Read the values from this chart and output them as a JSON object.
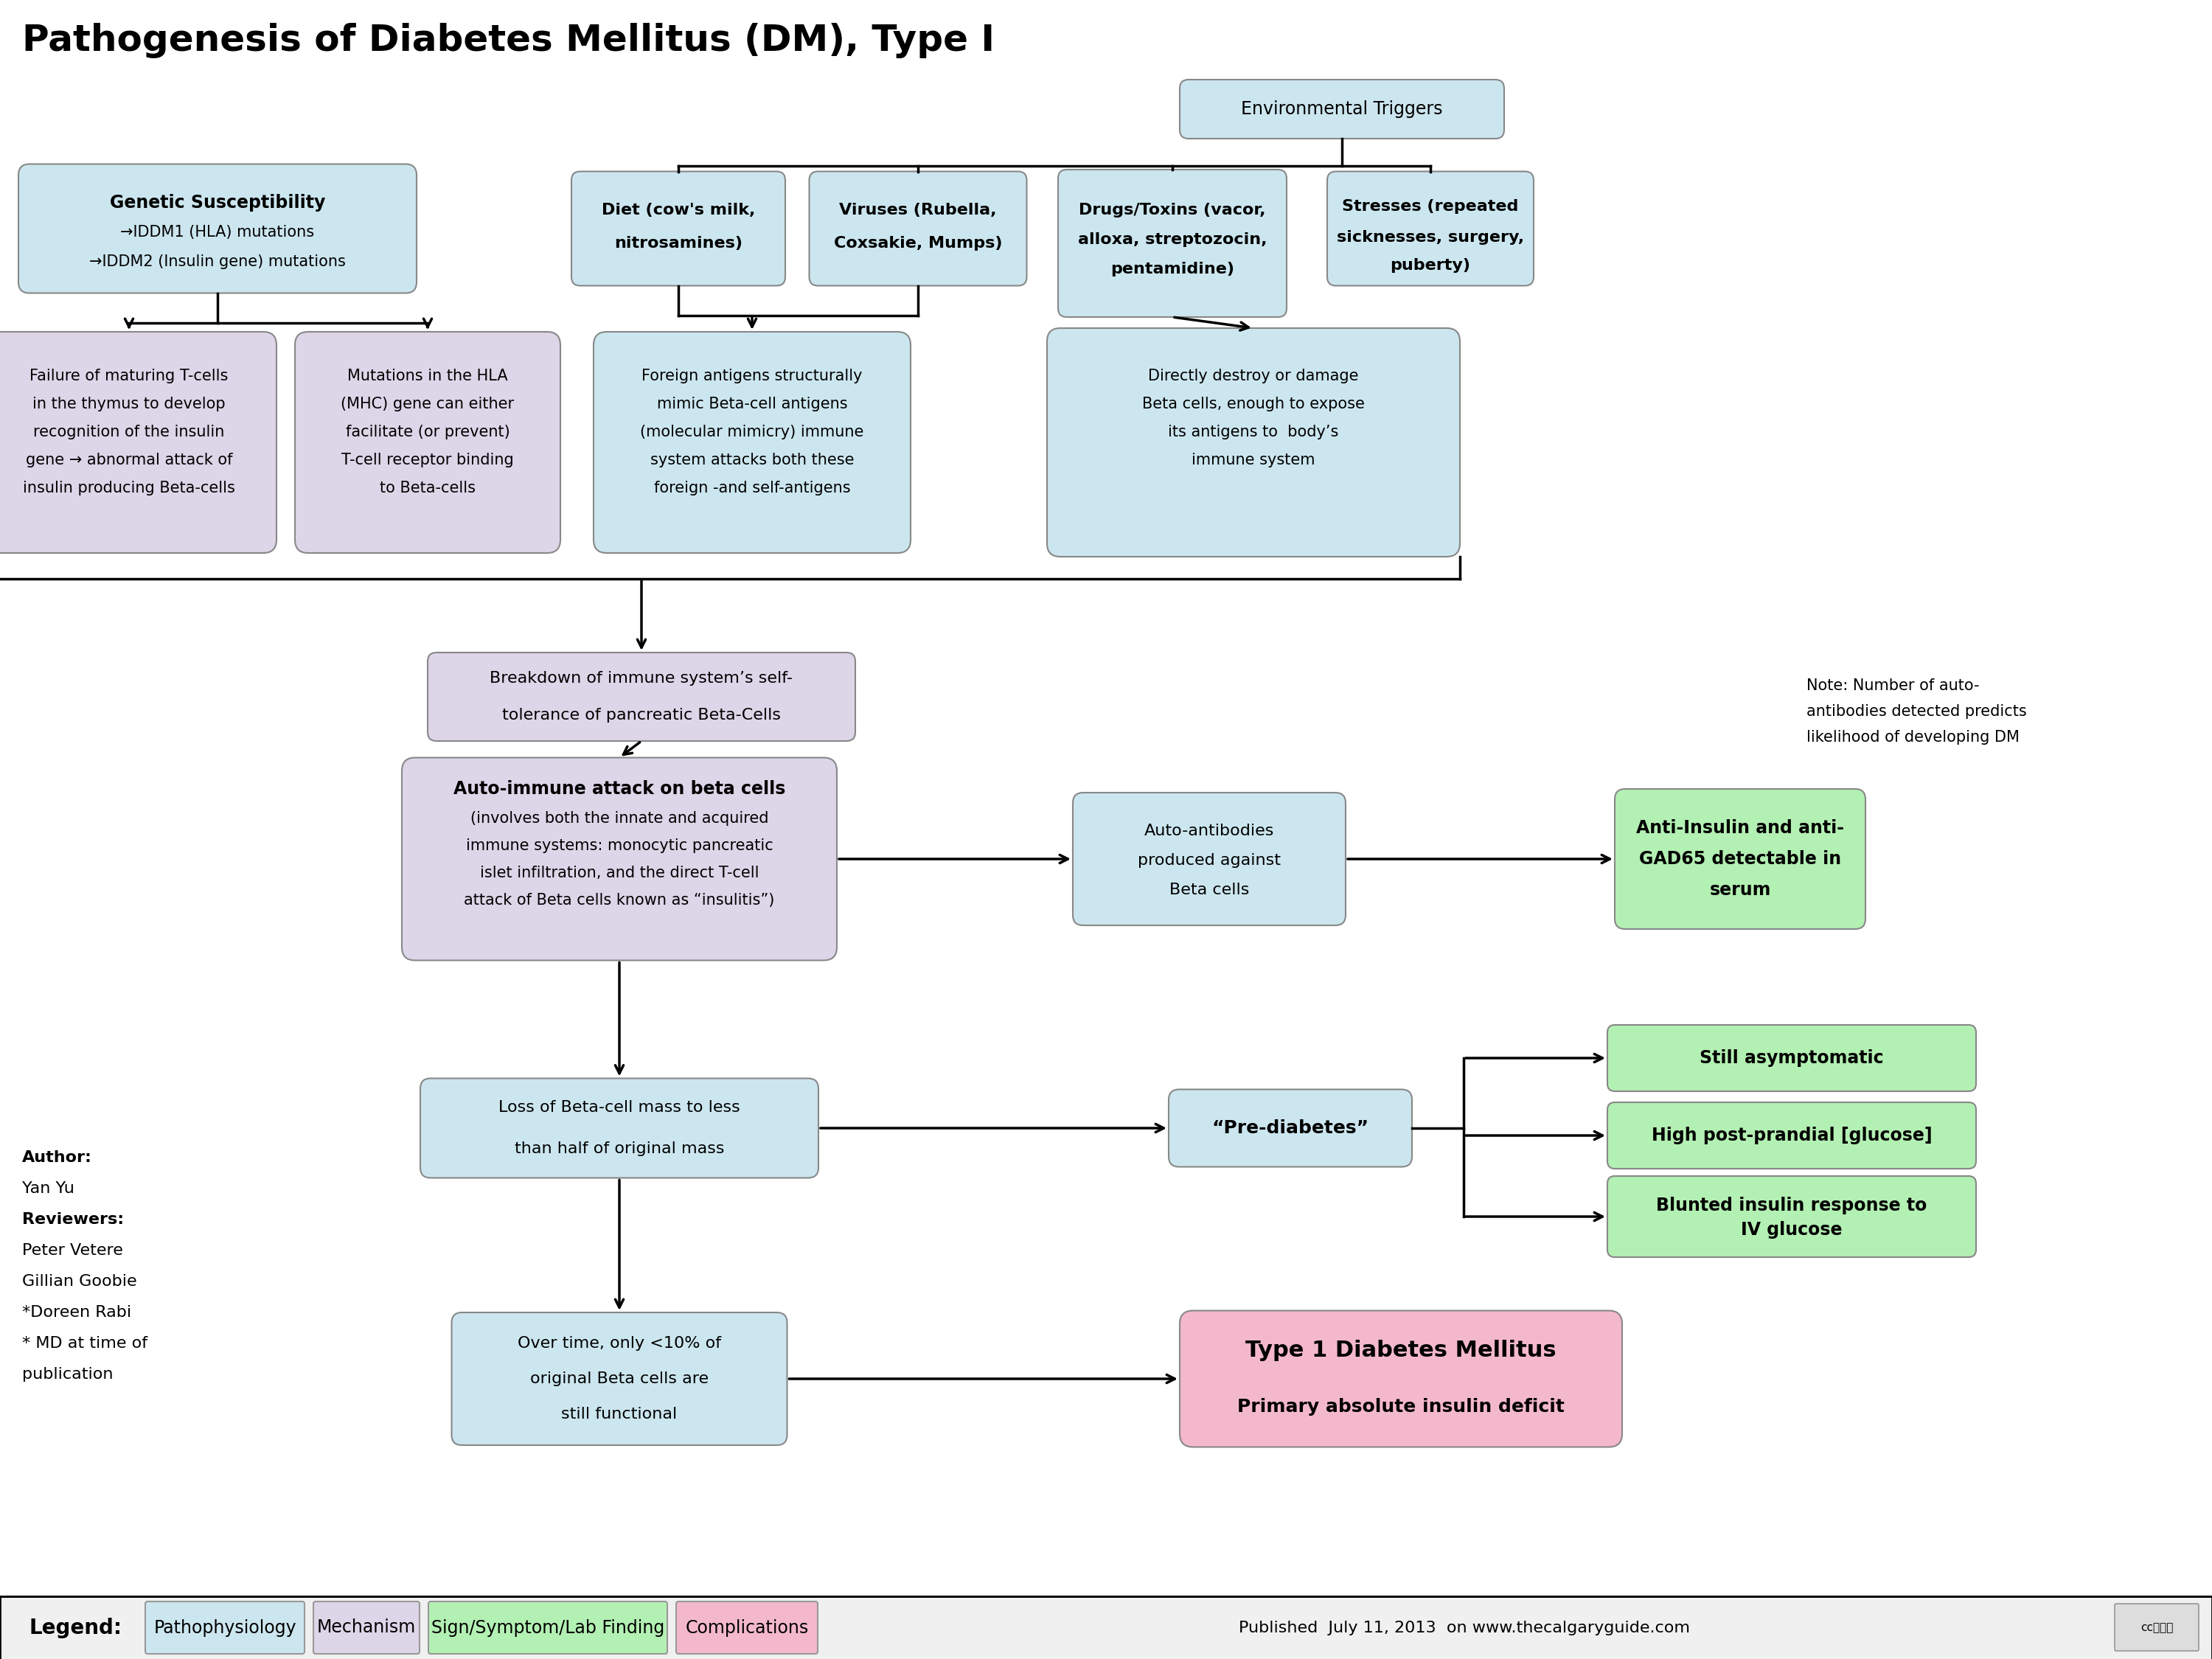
{
  "title": "Pathogenesis of Diabetes Mellitus (DM), Type I",
  "bg_color": "#ffffff",
  "c_blue": "#cce6ef",
  "c_purple": "#ddd5e8",
  "c_green": "#b3f0b3",
  "c_pink": "#f4b8cc",
  "c_note": "#ffffff",
  "legend_items": [
    {
      "label": "Pathophysiology",
      "color": "#cce6ef"
    },
    {
      "label": "Mechanism",
      "color": "#ddd5e8"
    },
    {
      "label": "Sign/Symptom/Lab Finding",
      "color": "#b3f0b3"
    },
    {
      "label": "Complications",
      "color": "#f4b8cc"
    }
  ],
  "published": "Published  July 11, 2013  on www.thecalgaryguide.com",
  "author": "Author:\nYan Yu\nReviewers:\nPeter Vetere\nGillian Goobie\n*Doreen Rabi\n* MD at time of\npublication"
}
